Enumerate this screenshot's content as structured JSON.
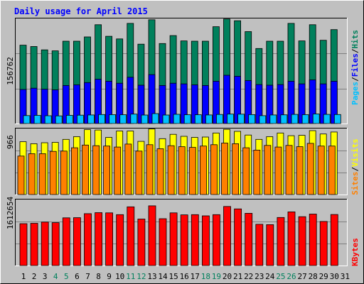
{
  "title": "Daily usage for April 2015",
  "colors": {
    "background": "#C0C0C0",
    "title": "#0000FF",
    "grid": "#7F7F7F",
    "hits": "#00805C",
    "files": "#0000FF",
    "pages": "#00C0FF",
    "visits": "#FFFF00",
    "sites": "#FF8000",
    "kbytes": "#FF0000",
    "weekday_label": "#000000",
    "weekend_label": "#00805C"
  },
  "chart_data": [
    {
      "type": "bar",
      "panel": "hits-files-pages",
      "ymax_label": "156762",
      "ylim": [
        0,
        156762
      ],
      "legend": [
        "Pages",
        "/",
        "Files",
        "/",
        "Hits"
      ],
      "categories": [
        "1",
        "2",
        "3",
        "4",
        "5",
        "6",
        "7",
        "8",
        "9",
        "10",
        "11",
        "12",
        "13",
        "14",
        "15",
        "16",
        "17",
        "18",
        "19",
        "20",
        "21",
        "22",
        "23",
        "24",
        "25",
        "26",
        "27",
        "28",
        "29",
        "30",
        "31"
      ],
      "series": [
        {
          "name": "Hits",
          "values": [
            118500,
            116500,
            111500,
            110000,
            124500,
            124500,
            131000,
            149500,
            132000,
            128000,
            151500,
            120000,
            157000,
            121000,
            133000,
            125000,
            124500,
            124500,
            146500,
            158000,
            155500,
            139000,
            113500,
            124500,
            124500,
            151500,
            125000,
            149500,
            126000,
            142000,
            0
          ]
        },
        {
          "name": "Files",
          "values": [
            51500,
            53500,
            52000,
            51000,
            57500,
            58500,
            62000,
            67000,
            64000,
            61000,
            70000,
            58000,
            74000,
            57500,
            61000,
            60000,
            58500,
            57500,
            64000,
            73000,
            71500,
            65000,
            59000,
            58000,
            59000,
            64000,
            60000,
            66000,
            60000,
            64000,
            0
          ]
        },
        {
          "name": "Pages",
          "values": [
            12000,
            12300,
            11800,
            11600,
            12500,
            12700,
            13000,
            13600,
            13400,
            13300,
            14300,
            12900,
            15000,
            12900,
            14000,
            13300,
            13300,
            13000,
            13700,
            14300,
            14200,
            13500,
            11900,
            13000,
            13200,
            13800,
            13400,
            14500,
            13800,
            13600,
            0
          ]
        }
      ]
    },
    {
      "type": "bar",
      "panel": "visits-sites",
      "ymax_label": "966",
      "ylim": [
        0,
        966
      ],
      "legend": [
        "Sites",
        "/",
        "Visits"
      ],
      "categories": [
        "1",
        "2",
        "3",
        "4",
        "5",
        "6",
        "7",
        "8",
        "9",
        "10",
        "11",
        "12",
        "13",
        "14",
        "15",
        "16",
        "17",
        "18",
        "19",
        "20",
        "21",
        "22",
        "23",
        "24",
        "25",
        "26",
        "27",
        "28",
        "29",
        "30",
        "31"
      ],
      "series": [
        {
          "name": "Visits",
          "values": [
            790,
            760,
            775,
            780,
            825,
            865,
            970,
            965,
            855,
            950,
            950,
            795,
            980,
            835,
            900,
            870,
            855,
            860,
            920,
            975,
            945,
            890,
            825,
            865,
            920,
            880,
            885,
            955,
            905,
            935,
            0
          ]
        },
        {
          "name": "Sites",
          "values": [
            575,
            610,
            610,
            645,
            650,
            700,
            740,
            730,
            725,
            710,
            755,
            650,
            745,
            685,
            730,
            715,
            705,
            725,
            745,
            770,
            760,
            700,
            665,
            735,
            710,
            735,
            715,
            765,
            725,
            725,
            0
          ]
        }
      ]
    },
    {
      "type": "bar",
      "panel": "kbytes",
      "ymax_label": "1612654",
      "ylim": [
        0,
        1612654
      ],
      "legend": [
        "KBytes"
      ],
      "categories": [
        "1",
        "2",
        "3",
        "4",
        "5",
        "6",
        "7",
        "8",
        "9",
        "10",
        "11",
        "12",
        "13",
        "14",
        "15",
        "16",
        "17",
        "18",
        "19",
        "20",
        "21",
        "22",
        "23",
        "24",
        "25",
        "26",
        "27",
        "28",
        "29",
        "30",
        "31"
      ],
      "series": [
        {
          "name": "KBytes",
          "values": [
            1045000,
            1055000,
            1085000,
            1070000,
            1190000,
            1195000,
            1295000,
            1320000,
            1315000,
            1270000,
            1465000,
            1160000,
            1490000,
            1170000,
            1315000,
            1265000,
            1270000,
            1240000,
            1270000,
            1475000,
            1415000,
            1305000,
            1030000,
            1020000,
            1200000,
            1340000,
            1220000,
            1285000,
            1100000,
            1275000,
            0
          ]
        }
      ]
    }
  ],
  "x_labels": [
    {
      "day": "1",
      "weekend": false
    },
    {
      "day": "2",
      "weekend": false
    },
    {
      "day": "3",
      "weekend": false
    },
    {
      "day": "4",
      "weekend": true
    },
    {
      "day": "5",
      "weekend": true
    },
    {
      "day": "6",
      "weekend": false
    },
    {
      "day": "7",
      "weekend": false
    },
    {
      "day": "8",
      "weekend": false
    },
    {
      "day": "9",
      "weekend": false
    },
    {
      "day": "10",
      "weekend": false
    },
    {
      "day": "11",
      "weekend": true
    },
    {
      "day": "12",
      "weekend": true
    },
    {
      "day": "13",
      "weekend": false
    },
    {
      "day": "14",
      "weekend": false
    },
    {
      "day": "15",
      "weekend": false
    },
    {
      "day": "16",
      "weekend": false
    },
    {
      "day": "17",
      "weekend": false
    },
    {
      "day": "18",
      "weekend": true
    },
    {
      "day": "19",
      "weekend": true
    },
    {
      "day": "20",
      "weekend": false
    },
    {
      "day": "21",
      "weekend": false
    },
    {
      "day": "22",
      "weekend": false
    },
    {
      "day": "23",
      "weekend": false
    },
    {
      "day": "24",
      "weekend": false
    },
    {
      "day": "25",
      "weekend": true
    },
    {
      "day": "26",
      "weekend": true
    },
    {
      "day": "27",
      "weekend": false
    },
    {
      "day": "28",
      "weekend": false
    },
    {
      "day": "29",
      "weekend": false
    },
    {
      "day": "30",
      "weekend": false
    },
    {
      "day": "31",
      "weekend": false
    }
  ]
}
